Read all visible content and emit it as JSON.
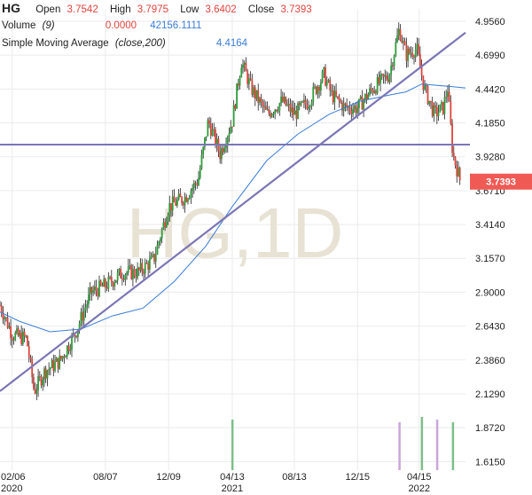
{
  "header": {
    "symbol": "HG",
    "open_label": "Open",
    "open_value": "3.7542",
    "high_label": "High",
    "high_value": "3.7975",
    "low_label": "Low",
    "low_value": "3.6402",
    "close_label": "Close",
    "close_value": "3.7393"
  },
  "volume_legend": {
    "label": "Volume",
    "param": "(9)",
    "value1": "0.0000",
    "value2": "42156.1111"
  },
  "sma_legend": {
    "label": "Simple Moving Average",
    "param": "(close,200)",
    "value": "4.4164"
  },
  "watermark": "HG,1D",
  "current_price_tag": "3.7393",
  "colors": {
    "up": "#2e9e3a",
    "down": "#e0443c",
    "wick": "#222222",
    "sma": "#3b7dd8",
    "trendline": "#7b76b5",
    "tag": "#f05a55",
    "volume": "#7fbf8a",
    "volume_alt": "#c9a6d9"
  },
  "chart_data": {
    "type": "candlestick",
    "x_tick_labels": [
      {
        "label": "02/06",
        "sub": "2020",
        "date": "2020-02-06"
      },
      {
        "label": "08/07",
        "sub": "",
        "date": "2020-08-07"
      },
      {
        "label": "12/09",
        "sub": "",
        "date": "2020-12-09"
      },
      {
        "label": "04/13",
        "sub": "2021",
        "date": "2021-04-13"
      },
      {
        "label": "08/13",
        "sub": "",
        "date": "2021-08-13"
      },
      {
        "label": "12/15",
        "sub": "",
        "date": "2021-12-15"
      },
      {
        "label": "04/15",
        "sub": "2022",
        "date": "2022-04-15"
      }
    ],
    "y_tick_labels": [
      "4.9560",
      "4.6990",
      "4.4420",
      "4.1850",
      "3.9280",
      "3.6710",
      "3.4140",
      "3.1570",
      "2.9000",
      "2.6430",
      "2.3860",
      "2.1290",
      "1.8720",
      "1.6150"
    ],
    "y_range": [
      1.55,
      5.05
    ],
    "x_range": [
      "2020-01-13",
      "2022-07-15"
    ],
    "price_path": [
      [
        "2020-01-13",
        2.8
      ],
      [
        "2020-02-06",
        2.58
      ],
      [
        "2020-02-20",
        2.56
      ],
      [
        "2020-03-05",
        2.55
      ],
      [
        "2020-03-20",
        2.15
      ],
      [
        "2020-04-10",
        2.3
      ],
      [
        "2020-05-10",
        2.38
      ],
      [
        "2020-06-10",
        2.6
      ],
      [
        "2020-07-10",
        2.9
      ],
      [
        "2020-08-07",
        2.95
      ],
      [
        "2020-09-10",
        3.05
      ],
      [
        "2020-10-10",
        3.05
      ],
      [
        "2020-11-10",
        3.15
      ],
      [
        "2020-12-09",
        3.55
      ],
      [
        "2021-01-10",
        3.62
      ],
      [
        "2021-02-05",
        3.75
      ],
      [
        "2021-02-25",
        4.2
      ],
      [
        "2021-03-20",
        3.95
      ],
      [
        "2021-04-13",
        4.2
      ],
      [
        "2021-05-01",
        4.65
      ],
      [
        "2021-05-20",
        4.45
      ],
      [
        "2021-06-20",
        4.25
      ],
      [
        "2021-07-20",
        4.35
      ],
      [
        "2021-08-13",
        4.25
      ],
      [
        "2021-09-10",
        4.35
      ],
      [
        "2021-10-10",
        4.55
      ],
      [
        "2021-10-25",
        4.4
      ],
      [
        "2021-11-20",
        4.3
      ],
      [
        "2021-12-15",
        4.3
      ],
      [
        "2022-01-15",
        4.45
      ],
      [
        "2022-02-15",
        4.55
      ],
      [
        "2022-03-07",
        4.9
      ],
      [
        "2022-03-20",
        4.7
      ],
      [
        "2022-04-10",
        4.75
      ],
      [
        "2022-04-25",
        4.45
      ],
      [
        "2022-05-15",
        4.25
      ],
      [
        "2022-06-01",
        4.3
      ],
      [
        "2022-06-10",
        4.45
      ],
      [
        "2022-06-20",
        3.95
      ],
      [
        "2022-07-05",
        3.74
      ]
    ],
    "sma_path": [
      [
        "2020-01-13",
        2.75
      ],
      [
        "2020-02-20",
        2.68
      ],
      [
        "2020-04-20",
        2.6
      ],
      [
        "2020-06-20",
        2.62
      ],
      [
        "2020-08-20",
        2.72
      ],
      [
        "2020-10-20",
        2.78
      ],
      [
        "2020-12-20",
        2.98
      ],
      [
        "2021-02-20",
        3.25
      ],
      [
        "2021-04-13",
        3.55
      ],
      [
        "2021-06-20",
        3.9
      ],
      [
        "2021-08-20",
        4.1
      ],
      [
        "2021-10-20",
        4.25
      ],
      [
        "2021-12-20",
        4.35
      ],
      [
        "2022-02-20",
        4.4
      ],
      [
        "2022-03-20",
        4.42
      ],
      [
        "2022-04-20",
        4.48
      ],
      [
        "2022-06-20",
        4.46
      ],
      [
        "2022-07-15",
        4.45
      ]
    ],
    "trendline": [
      [
        "2020-01-13",
        2.15
      ],
      [
        "2022-07-15",
        4.87
      ]
    ],
    "horizontal_line": 4.02,
    "current_price": 3.7393,
    "volume_bars": [
      [
        "2021-04-13",
        0.95
      ],
      [
        "2022-03-07",
        0.9
      ],
      [
        "2022-04-20",
        1.0
      ],
      [
        "2022-05-20",
        0.95
      ],
      [
        "2022-06-20",
        0.9
      ]
    ],
    "grid": true
  }
}
